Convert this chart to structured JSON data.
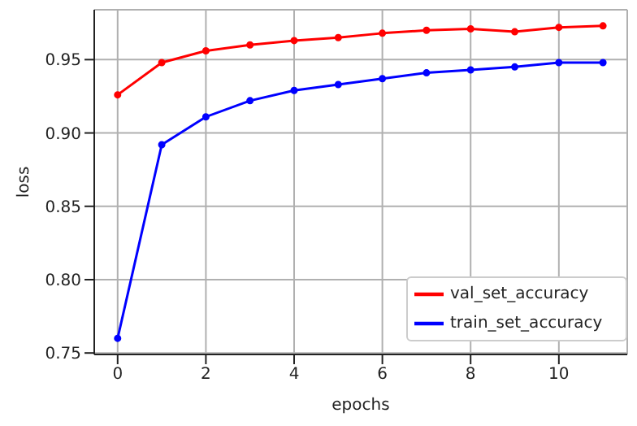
{
  "chart_data": {
    "type": "line",
    "xlabel": "epochs",
    "ylabel": "loss",
    "x": [
      0,
      1,
      2,
      3,
      4,
      5,
      6,
      7,
      8,
      9,
      10,
      11
    ],
    "series": [
      {
        "name": "val_set_accuracy",
        "color": "#ff0000",
        "values": [
          0.926,
          0.948,
          0.956,
          0.96,
          0.963,
          0.965,
          0.968,
          0.97,
          0.971,
          0.969,
          0.972,
          0.973
        ]
      },
      {
        "name": "train_set_accuracy",
        "color": "#0000ff",
        "values": [
          0.76,
          0.892,
          0.911,
          0.922,
          0.929,
          0.933,
          0.937,
          0.941,
          0.943,
          0.945,
          0.948,
          0.948
        ]
      }
    ],
    "xlim": [
      -0.53,
      11.55
    ],
    "xticks": [
      0,
      2,
      4,
      6,
      8,
      10
    ],
    "ylim": [
      0.749,
      0.984
    ],
    "yticks": [
      0.75,
      {
        "value": 0.8,
        "label": "0.80"
      },
      0.85,
      {
        "value": 0.9,
        "label": "0.90"
      },
      0.95
    ],
    "grid": true,
    "legend": "bottom right",
    "marker": "circle",
    "line_style": "solid"
  }
}
